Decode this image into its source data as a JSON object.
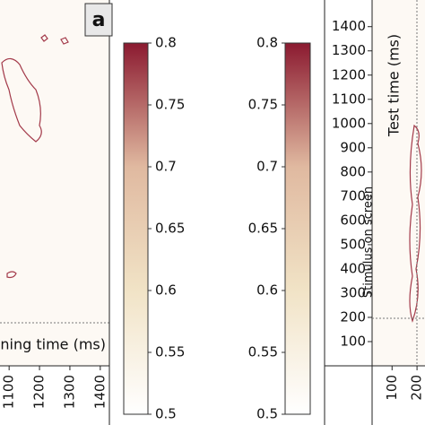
{
  "chart_data": [
    {
      "type": "heatmap",
      "panel_label": "a",
      "xlabel": "ning time (ms)",
      "xlim": [
        1070,
        1430
      ],
      "xticks": [
        1100,
        1200,
        1300,
        1400
      ]
    },
    {
      "type": "colorbar",
      "ylim": [
        0.5,
        0.8
      ],
      "yticks": [
        0.5,
        0.55,
        0.6,
        0.65,
        0.7,
        0.75,
        0.8
      ],
      "colors": [
        "#ffffff",
        "#f1e3c6",
        "#e0b9a0",
        "#8b1a30"
      ],
      "tick_side": "right"
    },
    {
      "type": "colorbar",
      "ylim": [
        0.5,
        0.8
      ],
      "yticks": [
        0.5,
        0.55,
        0.6,
        0.65,
        0.7,
        0.75,
        0.8
      ],
      "colors": [
        "#ffffff",
        "#f1e3c6",
        "#e0b9a0",
        "#8b1a30"
      ],
      "tick_side": "left"
    },
    {
      "type": "heatmap",
      "ylabel": "Test time (ms)",
      "annotation": "Stimulus on screen",
      "xlim": [
        20,
        232
      ],
      "xticks": [
        100,
        200
      ],
      "ylim": [
        0,
        1510
      ],
      "yticks": [
        100,
        200,
        300,
        400,
        500,
        600,
        700,
        800,
        900,
        1000,
        1100,
        1200,
        1300,
        1400
      ]
    }
  ]
}
